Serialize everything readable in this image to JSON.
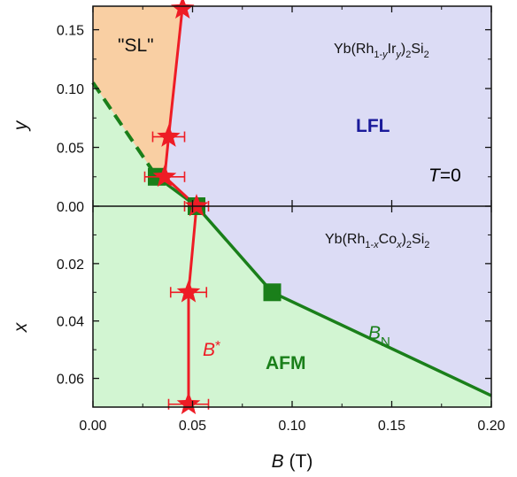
{
  "chart_data": [
    {
      "type": "scatter",
      "panel": "top",
      "xlim": [
        0.0,
        0.2
      ],
      "ylim": [
        0.0,
        0.17
      ],
      "x_ticks": [
        0.0,
        0.05,
        0.1,
        0.15,
        0.2
      ],
      "y_ticks": [
        0.0,
        0.05,
        0.1,
        0.15
      ],
      "y_tick_labels": [
        "0.00",
        "0.05",
        "0.10",
        "0.15"
      ],
      "ylabel": "y",
      "compound_label": "Yb(Rh1-yIry)2Si2",
      "compound": {
        "base": "Yb(Rh",
        "s1": "1-",
        "s1_var": "y",
        "mid": "Ir",
        "s2_var": "y",
        "end": ")",
        "s3": "2",
        "tail": "Si",
        "s4": "2"
      },
      "temperature_label": {
        "var": "T",
        "rest": "=0"
      },
      "region_labels": {
        "sl": "\"SL\"",
        "lfl": "LFL"
      },
      "series": [
        {
          "name": "B*",
          "marker": "star",
          "color": "#ee1c25",
          "points": [
            {
              "x": 0.038,
              "y": 0.059,
              "xerr": 0.008
            },
            {
              "x": 0.036,
              "y": 0.025,
              "xerr": 0.01
            },
            {
              "x": 0.045,
              "y": 0.168
            }
          ]
        },
        {
          "name": "BN",
          "marker": "square",
          "color": "#1a7f1a",
          "points": [
            {
              "x": 0.032,
              "y": 0.025
            }
          ]
        }
      ],
      "boundaries": {
        "sl_afm_dashed": [
          [
            0.0,
            0.105
          ],
          [
            0.032,
            0.025
          ]
        ],
        "star_line": [
          [
            0.036,
            0.025
          ],
          [
            0.038,
            0.059
          ],
          [
            0.045,
            0.17
          ]
        ]
      }
    },
    {
      "type": "scatter",
      "panel": "bottom",
      "xlim": [
        0.0,
        0.2
      ],
      "ylim": [
        0.0,
        0.07
      ],
      "y_inverted": true,
      "x_ticks": [
        0.0,
        0.05,
        0.1,
        0.15,
        0.2
      ],
      "x_tick_labels": [
        "0.00",
        "0.05",
        "0.10",
        "0.15",
        "0.20"
      ],
      "y_ticks": [
        0.02,
        0.04,
        0.06
      ],
      "y_tick_labels": [
        "0.02",
        "0.04",
        "0.06"
      ],
      "xlabel": {
        "var": "B",
        "unit": " (T)"
      },
      "ylabel": "x",
      "compound_label": "Yb(Rh1-xCox)2Si2",
      "compound": {
        "base": "Yb(Rh",
        "s1": "1-",
        "s1_var": "x",
        "mid": "Co",
        "s2_var": "x",
        "end": ")",
        "s3": "2",
        "tail": "Si",
        "s4": "2"
      },
      "region_labels": {
        "afm": "AFM"
      },
      "curve_labels": {
        "bstar": {
          "var": "B",
          "sup": "*"
        },
        "bn": {
          "var": "B",
          "sub": "N"
        }
      },
      "series": [
        {
          "name": "B*",
          "marker": "star",
          "color": "#ee1c25",
          "points": [
            {
              "x": 0.052,
              "y": 0.0,
              "xerr": 0.006
            },
            {
              "x": 0.048,
              "y": 0.03,
              "xerr": 0.009
            },
            {
              "x": 0.048,
              "y": 0.069,
              "xerr": 0.01
            }
          ]
        },
        {
          "name": "BN",
          "marker": "square",
          "color": "#1a7f1a",
          "points": [
            {
              "x": 0.052,
              "y": 0.0
            },
            {
              "x": 0.09,
              "y": 0.03
            }
          ]
        }
      ],
      "boundaries": {
        "bn_line": [
          [
            0.032,
            -0.025
          ],
          [
            0.052,
            0.0
          ],
          [
            0.09,
            0.03
          ],
          [
            0.2,
            0.066
          ]
        ],
        "star_line": [
          [
            0.052,
            0.0
          ],
          [
            0.048,
            0.03
          ],
          [
            0.048,
            0.07
          ]
        ]
      }
    }
  ],
  "colors": {
    "lfl": "#dcdcf5",
    "afm": "#d2f5d2",
    "sl": "#f9cfa3",
    "red": "#ee1c25",
    "green": "#1a7f1a",
    "lfl_text": "#1a1a9a"
  }
}
